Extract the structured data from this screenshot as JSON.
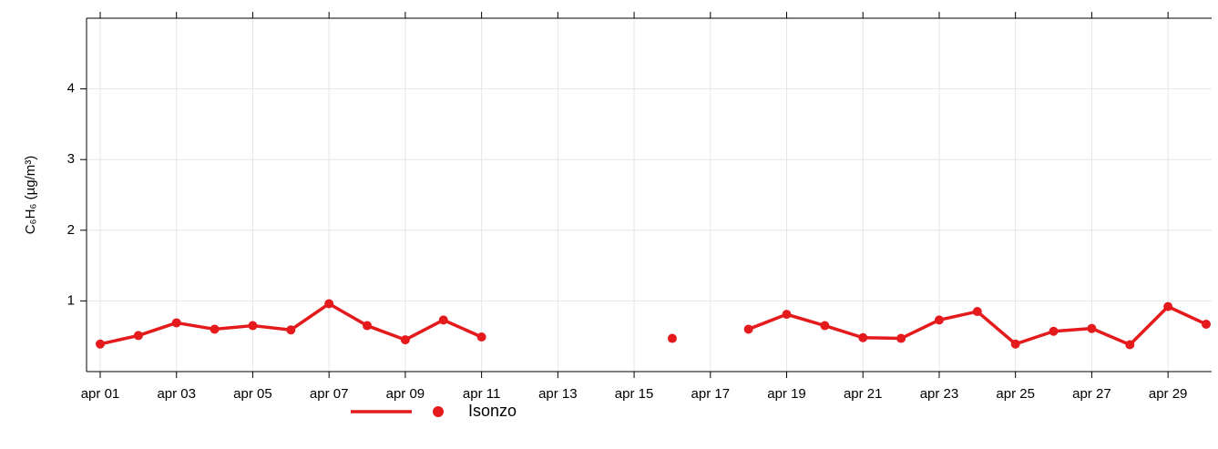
{
  "chart_data": {
    "type": "line",
    "y_label": "C₆H₆ (µg/m³)",
    "categories": [
      "apr 01",
      null,
      "apr 03",
      null,
      "apr 05",
      null,
      "apr 07",
      null,
      "apr 09",
      null,
      "apr 11",
      null,
      "apr 13",
      null,
      "apr 15",
      null,
      "apr 17",
      null,
      "apr 19",
      null,
      "apr 21",
      null,
      "apr 23",
      null,
      "apr 25",
      null,
      "apr 27",
      null,
      "apr 29",
      null
    ],
    "series": [
      {
        "name": "Isonzo",
        "color": "#e41a1c",
        "values": [
          0.39,
          0.51,
          0.69,
          0.6,
          0.65,
          0.59,
          0.96,
          0.65,
          0.45,
          0.73,
          0.49,
          null,
          null,
          null,
          null,
          0.47,
          null,
          0.6,
          0.81,
          0.65,
          0.48,
          0.47,
          0.73,
          0.85,
          0.39,
          0.57,
          0.61,
          0.38,
          0.92,
          0.67
        ]
      }
    ],
    "ylim": [
      0,
      5
    ],
    "yticks": [
      1,
      2,
      3,
      4
    ],
    "grid": true,
    "legend": "bottom"
  }
}
